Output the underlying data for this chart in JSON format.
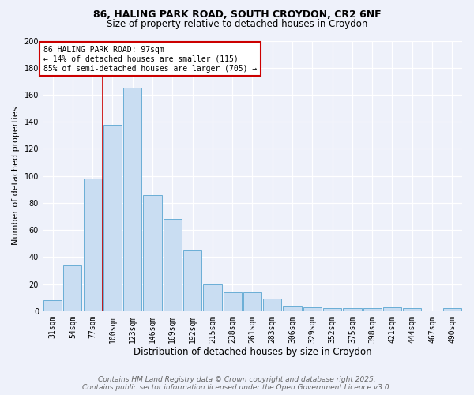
{
  "title1": "86, HALING PARK ROAD, SOUTH CROYDON, CR2 6NF",
  "title2": "Size of property relative to detached houses in Croydon",
  "xlabel": "Distribution of detached houses by size in Croydon",
  "ylabel": "Number of detached properties",
  "categories": [
    "31sqm",
    "54sqm",
    "77sqm",
    "100sqm",
    "123sqm",
    "146sqm",
    "169sqm",
    "192sqm",
    "215sqm",
    "238sqm",
    "261sqm",
    "283sqm",
    "306sqm",
    "329sqm",
    "352sqm",
    "375sqm",
    "398sqm",
    "421sqm",
    "444sqm",
    "467sqm",
    "490sqm"
  ],
  "values": [
    8,
    34,
    98,
    138,
    165,
    86,
    68,
    45,
    20,
    14,
    14,
    9,
    4,
    3,
    2,
    2,
    2,
    3,
    2,
    0,
    2
  ],
  "bar_color": "#c9ddf2",
  "bar_edge_color": "#6aaed6",
  "red_line_x": 2.5,
  "annotation_title": "86 HALING PARK ROAD: 97sqm",
  "annotation_line1": "← 14% of detached houses are smaller (115)",
  "annotation_line2": "85% of semi-detached houses are larger (705) →",
  "annotation_box_color": "#ffffff",
  "annotation_box_edge": "#cc0000",
  "red_line_color": "#cc0000",
  "background_color": "#eef1fa",
  "footer1": "Contains HM Land Registry data © Crown copyright and database right 2025.",
  "footer2": "Contains public sector information licensed under the Open Government Licence v3.0.",
  "ylim": [
    0,
    200
  ],
  "yticks": [
    0,
    20,
    40,
    60,
    80,
    100,
    120,
    140,
    160,
    180,
    200
  ],
  "title1_fontsize": 9,
  "title2_fontsize": 8.5,
  "xlabel_fontsize": 8.5,
  "ylabel_fontsize": 8,
  "tick_fontsize": 7,
  "footer_fontsize": 6.5
}
